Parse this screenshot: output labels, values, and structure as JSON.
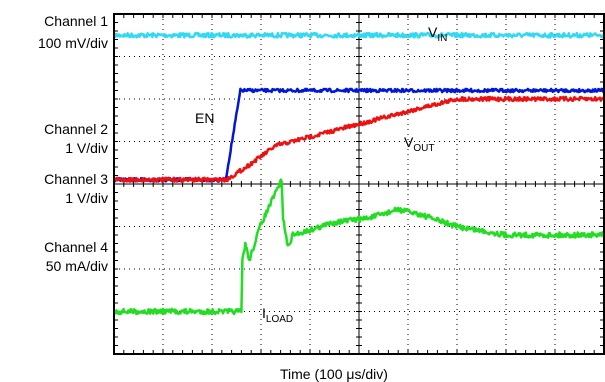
{
  "channels": [
    {
      "name": "Channel 1",
      "scale": "100 mV/div"
    },
    {
      "name": "Channel 2",
      "scale": "1 V/div"
    },
    {
      "name": "Channel 3",
      "scale": "1 V/div"
    },
    {
      "name": "Channel 4",
      "scale": "50 mA/div"
    }
  ],
  "labels": {
    "vin": {
      "main": "V",
      "sub": "IN"
    },
    "en": "EN",
    "vout": {
      "main": "V",
      "sub": "OUT"
    },
    "iload": {
      "main": "I",
      "sub": "LOAD"
    },
    "xlabel": "Time (100 μs/div)"
  },
  "colors": {
    "vin": "#33d9f2",
    "en": "#0018d6",
    "vout": "#ee1111",
    "iload": "#22dd22",
    "grid": "#000000"
  },
  "chart_data": {
    "type": "line",
    "grid": true,
    "divisions": {
      "x": 10,
      "y": 8
    },
    "xlim": [
      0,
      10
    ],
    "ylim": [
      0,
      8
    ],
    "series": [
      {
        "name": "VIN",
        "x": [
          0,
          10
        ],
        "y": [
          7.5,
          7.5
        ]
      },
      {
        "name": "EN",
        "x": [
          0,
          2.28,
          2.58,
          10
        ],
        "y": [
          4.1,
          4.1,
          6.2,
          6.2
        ]
      },
      {
        "name": "VOUT",
        "x": [
          0,
          2.3,
          2.7,
          3.3,
          4.3,
          5.3,
          6.3,
          7.0,
          8.0,
          10
        ],
        "y": [
          4.1,
          4.1,
          4.4,
          4.9,
          5.2,
          5.5,
          5.8,
          6.0,
          6.0,
          6.0
        ]
      },
      {
        "name": "ILOAD",
        "x": [
          0,
          2.6,
          2.62,
          2.68,
          2.76,
          2.98,
          3.42,
          3.45,
          3.55,
          3.65,
          3.95,
          4.5,
          5.2,
          5.8,
          6.2,
          7.0,
          8.0,
          10
        ],
        "y": [
          1.0,
          1.0,
          2.2,
          2.6,
          2.2,
          3.0,
          4.1,
          3.2,
          2.5,
          2.8,
          2.9,
          3.1,
          3.2,
          3.4,
          3.3,
          3.0,
          2.8,
          2.8
        ]
      }
    ]
  }
}
